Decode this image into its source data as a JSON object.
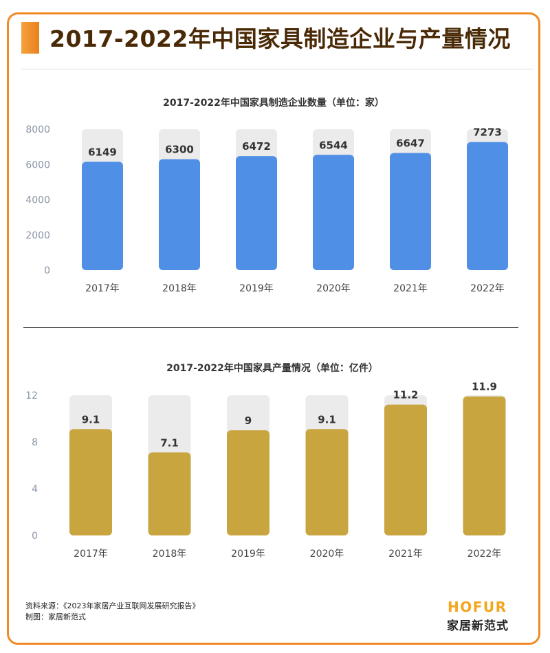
{
  "header": {
    "title": "2017-2022年中国家具制造企业与产量情况"
  },
  "chart_data": [
    {
      "type": "bar",
      "title": "2017-2022年中国家具制造企业数量（单位：家）",
      "categories": [
        "2017年",
        "2018年",
        "2019年",
        "2020年",
        "2021年",
        "2022年"
      ],
      "values": [
        6149,
        6300,
        6472,
        6544,
        6647,
        7273
      ],
      "ylim": [
        0,
        8000
      ],
      "yticks": [
        0,
        2000,
        4000,
        6000,
        8000
      ],
      "bar_color": "#4f8fe5",
      "track_color": "#ebebeb"
    },
    {
      "type": "bar",
      "title": "2017-2022年中国家具产量情况（单位：亿件）",
      "categories": [
        "2017年",
        "2018年",
        "2019年",
        "2020年",
        "2021年",
        "2022年"
      ],
      "values": [
        9.1,
        7.1,
        9,
        9.1,
        11.2,
        11.9
      ],
      "ylim": [
        0,
        12
      ],
      "yticks": [
        0,
        4,
        8,
        12
      ],
      "bar_color": "#c9a53f",
      "track_color": "#ebebeb"
    }
  ],
  "footer": {
    "source": "资料来源：《2023年家居产业互联网发展研究报告》",
    "maker": "制图：家居新范式"
  },
  "logo": {
    "en": "HOFUR",
    "cn": "家居新范式"
  }
}
